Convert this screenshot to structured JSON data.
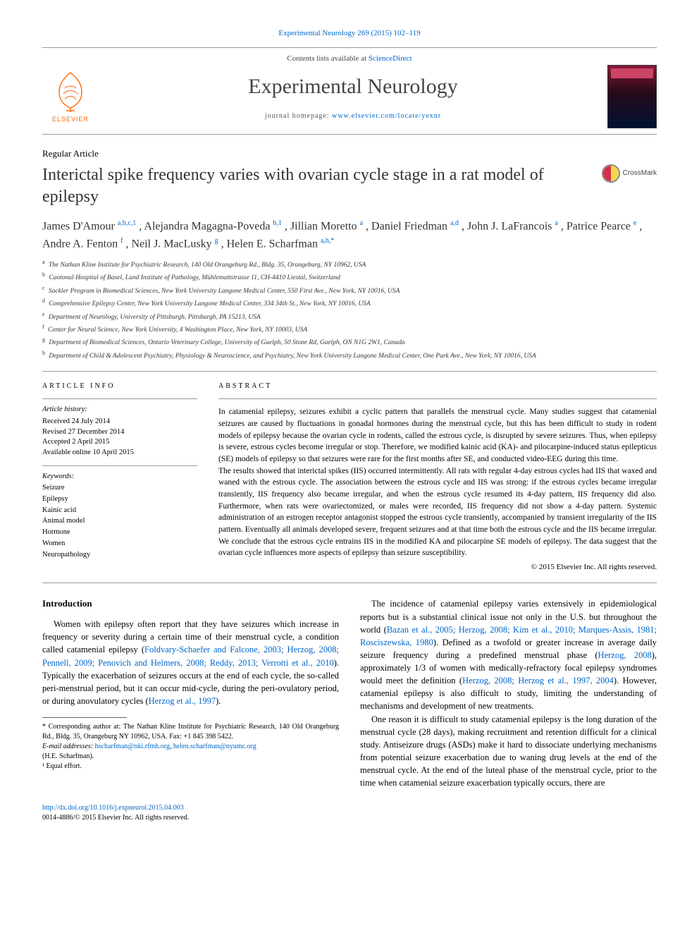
{
  "header": {
    "citation": "Experimental Neurology 269 (2015) 102–119",
    "contents_prefix": "Contents lists available at ",
    "contents_link": "ScienceDirect",
    "journal_name": "Experimental Neurology",
    "homepage_label": "journal homepage: ",
    "homepage_url": "www.elsevier.com/locate/yexnr",
    "elsevier_label": "ELSEVIER"
  },
  "crossmark_label": "CrossMark",
  "article": {
    "type": "Regular Article",
    "title": "Interictal spike frequency varies with ovarian cycle stage in a rat model of epilepsy"
  },
  "authors_html_parts": {
    "a1_name": "James D'Amour ",
    "a1_sup": "a,b,c,1",
    "a2_name": ", Alejandra Magagna-Poveda ",
    "a2_sup": "b,1",
    "a3_name": ", Jillian Moretto ",
    "a3_sup": "a",
    "a4_name": ", Daniel Friedman ",
    "a4_sup": "a,d",
    "a5_name": ", John J. LaFrancois ",
    "a5_sup": "a",
    "a6_name": ", Patrice Pearce ",
    "a6_sup": "e",
    "a7_name": ", Andre A. Fenton ",
    "a7_sup": "f",
    "a8_name": ", Neil J. MacLusky ",
    "a8_sup": "g",
    "a9_name": ", Helen E. Scharfman ",
    "a9_sup": "a,h,",
    "a9_ast": "*"
  },
  "affiliations": [
    {
      "key": "a",
      "text": "The Nathan Kline Institute for Psychiatric Research, 140 Old Orangeburg Rd., Bldg. 35, Orangeburg, NY 10962, USA"
    },
    {
      "key": "b",
      "text": "Cantonal Hospital of Basel, Land Institute of Pathology, Mühlemattstrasse 11, CH-4410 Liestal, Switzerland"
    },
    {
      "key": "c",
      "text": "Sackler Program in Biomedical Sciences, New York University Langone Medical Center, 550 First Ave., New York, NY 10016, USA"
    },
    {
      "key": "d",
      "text": "Comprehensive Epilepsy Center, New York University Langone Medical Center, 334 34th St., New York, NY 10016, USA"
    },
    {
      "key": "e",
      "text": "Department of Neurology, University of Pittsburgh, Pittsburgh, PA 15213, USA"
    },
    {
      "key": "f",
      "text": "Center for Neural Science, New York University, 4 Washington Place, New York, NY 10003, USA"
    },
    {
      "key": "g",
      "text": "Department of Biomedical Sciences, Ontario Veterinary College, University of Guelph, 50 Stone Rd, Guelph, ON N1G 2W1, Canada"
    },
    {
      "key": "h",
      "text": "Department of Child & Adolescent Psychiatry, Physiology & Neuroscience, and Psychiatry, New York University Langone Medical Center, One Park Ave., New York, NY 10016, USA"
    }
  ],
  "info": {
    "head": "article info",
    "history_label": "Article history:",
    "received": "Received 24 July 2014",
    "revised": "Revised 27 December 2014",
    "accepted": "Accepted 2 April 2015",
    "online": "Available online 10 April 2015",
    "keywords_label": "Keywords:",
    "keywords": [
      "Seizure",
      "Epilepsy",
      "Kainic acid",
      "Animal model",
      "Hormone",
      "Women",
      "Neuropathology"
    ]
  },
  "abstract": {
    "head": "abstract",
    "p1": "In catamenial epilepsy, seizures exhibit a cyclic pattern that parallels the menstrual cycle. Many studies suggest that catamenial seizures are caused by fluctuations in gonadal hormones during the menstrual cycle, but this has been difficult to study in rodent models of epilepsy because the ovarian cycle in rodents, called the estrous cycle, is disrupted by severe seizures. Thus, when epilepsy is severe, estrous cycles become irregular or stop. Therefore, we modified kainic acid (KA)- and pilocarpine-induced status epilepticus (SE) models of epilepsy so that seizures were rare for the first months after SE, and conducted video-EEG during this time.",
    "p2": "The results showed that interictal spikes (IIS) occurred intermittently. All rats with regular 4-day estrous cycles had IIS that waxed and waned with the estrous cycle. The association between the estrous cycle and IIS was strong: if the estrous cycles became irregular transiently, IIS frequency also became irregular, and when the estrous cycle resumed its 4-day pattern, IIS frequency did also. Furthermore, when rats were ovariectomized, or males were recorded, IIS frequency did not show a 4-day pattern. Systemic administration of an estrogen receptor antagonist stopped the estrous cycle transiently, accompanied by transient irregularity of the IIS pattern. Eventually all animals developed severe, frequent seizures and at that time both the estrous cycle and the IIS became irregular. We conclude that the estrous cycle entrains IIS in the modified KA and pilocarpine SE models of epilepsy. The data suggest that the ovarian cycle influences more aspects of epilepsy than seizure susceptibility.",
    "copyright": "© 2015 Elsevier Inc. All rights reserved."
  },
  "intro": {
    "head": "Introduction",
    "col1_p1_a": "Women with epilepsy often report that they have seizures which increase in frequency or severity during a certain time of their menstrual cycle, a condition called catamenial epilepsy (",
    "col1_p1_link1": "Foldvary-Schaefer and Falcone, 2003; Herzog, 2008; Pennell, 2009; Penovich and Helmers, 2008; Reddy, 2013; Verrotti et al., 2010",
    "col1_p1_b": "). Typically the exacerbation of seizures occurs at the end of each cycle, the so-called peri-menstrual period, but it can occur mid-cycle, during the peri-ovulatory period, or during anovulatory cycles (",
    "col1_p1_link2": "Herzog et al., 1997",
    "col1_p1_c": ").",
    "col2_p1_a": "The incidence of catamenial epilepsy varies extensively in epidemiological reports but is a substantial clinical issue not only in the U.S. but throughout the world (",
    "col2_p1_link1": "Bazan et al., 2005; Herzog, 2008; Kim et al., 2010; Marques-Assis, 1981; Rosciszewska, 1980",
    "col2_p1_b": "). Defined as a twofold or greater increase in average daily seizure frequency during a predefined menstrual phase (",
    "col2_p1_link2": "Herzog, 2008",
    "col2_p1_c": "), approximately 1/3 of women with medically-refractory focal epilepsy syndromes would meet the definition (",
    "col2_p1_link3": "Herzog, 2008; Herzog et al., 1997, 2004",
    "col2_p1_d": "). However, catamenial epilepsy is also difficult to study, limiting the understanding of mechanisms and development of new treatments.",
    "col2_p2": "One reason it is difficult to study catamenial epilepsy is the long duration of the menstrual cycle (28 days), making recruitment and retention difficult for a clinical study. Antiseizure drugs (ASDs) make it hard to dissociate underlying mechanisms from potential seizure exacerbation due to waning drug levels at the end of the menstrual cycle. At the end of the luteal phase of the menstrual cycle, prior to the time when catamenial seizure exacerbation typically occurs, there are"
  },
  "footnotes": {
    "corr_label": "* Corresponding author at: The Nathan Kline Institute for Psychiatric Research, 140 Old Orangeburg Rd., Bldg. 35, Orangeburg NY 10962, USA. Fax: +1 845 398 5422.",
    "email_label": "E-mail addresses: ",
    "email1": "hscharfman@nki.rfmh.org",
    "email_sep": ", ",
    "email2": "helen.scharfman@nyumc.org",
    "email_tail": " (H.E. Scharfman).",
    "equal": "¹ Equal effort."
  },
  "bottom": {
    "doi": "http://dx.doi.org/10.1016/j.expneurol.2015.04.003",
    "issn": "0014-4886/© 2015 Elsevier Inc. All rights reserved."
  },
  "colors": {
    "link": "#0066cc",
    "elsevier_orange": "#ff6600",
    "rule": "#999999",
    "text": "#000000"
  }
}
